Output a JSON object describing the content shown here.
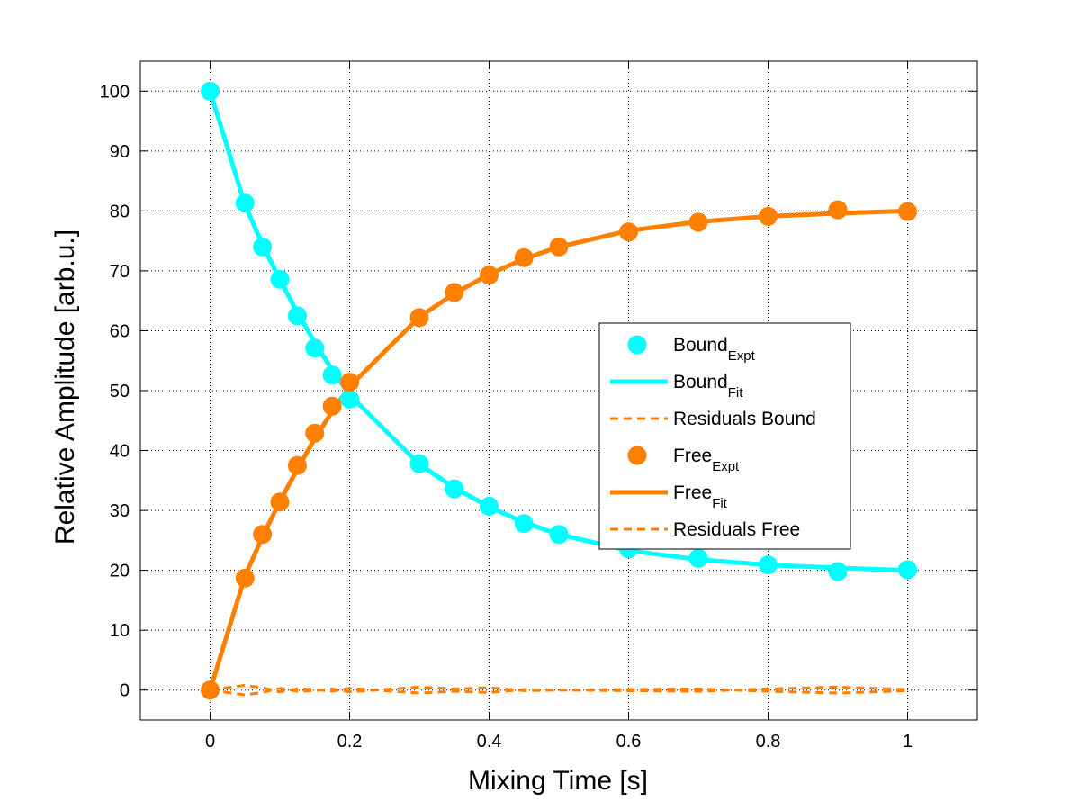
{
  "chart_data": {
    "type": "line",
    "title": "",
    "xlabel": "Mixing Time [s]",
    "ylabel": "Relative Amplitude [arb.u.]",
    "xlim": [
      -0.1,
      1.1
    ],
    "ylim": [
      -5,
      105
    ],
    "xticks": [
      0,
      0.2,
      0.4,
      0.6,
      0.8,
      1
    ],
    "xtick_labels": [
      "0",
      "0.2",
      "0.4",
      "0.6",
      "0.8",
      "1"
    ],
    "yticks": [
      0,
      10,
      20,
      30,
      40,
      50,
      60,
      70,
      80,
      90,
      100
    ],
    "ytick_labels": [
      "0",
      "10",
      "20",
      "30",
      "40",
      "50",
      "60",
      "70",
      "80",
      "90",
      "100"
    ],
    "grid": true,
    "legend_position": "center-right",
    "colors": {
      "bound": "#00ffff",
      "free": "#ff7f00"
    },
    "x": [
      0,
      0.05,
      0.075,
      0.1,
      0.125,
      0.15,
      0.175,
      0.2,
      0.3,
      0.35,
      0.4,
      0.45,
      0.5,
      0.6,
      0.7,
      0.8,
      0.9,
      1.0
    ],
    "series": [
      {
        "key": "bound_expt",
        "name": "Bound",
        "name_sub": "Expt",
        "style": "marker",
        "values": [
          100,
          81.3,
          74.0,
          68.6,
          62.5,
          57.1,
          52.6,
          48.6,
          37.8,
          33.6,
          30.7,
          27.8,
          26.0,
          23.6,
          22.0,
          20.9,
          19.8,
          20.1
        ]
      },
      {
        "key": "bound_fit",
        "name": "Bound",
        "name_sub": "Fit",
        "style": "solid",
        "values": [
          100,
          81.0,
          74.4,
          68.5,
          63.1,
          58.0,
          53.5,
          49.3,
          37.7,
          33.8,
          30.6,
          28.0,
          26.0,
          23.3,
          21.8,
          20.9,
          20.4,
          20.0
        ]
      },
      {
        "key": "residuals_bound",
        "name": "Residuals Bound",
        "name_sub": "",
        "style": "dashed",
        "values": [
          0,
          -0.8,
          -0.4,
          0.3,
          -0.2,
          -0.1,
          0.2,
          -0.3,
          0.5,
          0.2,
          0.4,
          -0.1,
          0.0,
          0.1,
          0.2,
          -0.2,
          -0.5,
          -0.1
        ]
      },
      {
        "key": "free_expt",
        "name": "Free",
        "name_sub": "Expt",
        "style": "marker",
        "values": [
          0,
          18.7,
          26.0,
          31.4,
          37.5,
          42.9,
          47.4,
          51.4,
          62.2,
          66.4,
          69.3,
          72.2,
          74.0,
          76.5,
          78.1,
          79.1,
          80.2,
          79.9
        ]
      },
      {
        "key": "free_fit",
        "name": "Free",
        "name_sub": "Fit",
        "style": "solid",
        "values": [
          0,
          19.0,
          25.6,
          31.5,
          36.9,
          42.0,
          46.5,
          50.7,
          62.3,
          66.2,
          69.4,
          72.0,
          74.0,
          76.7,
          78.2,
          79.1,
          79.6,
          80.0
        ]
      },
      {
        "key": "residuals_free",
        "name": "Residuals Free",
        "name_sub": "",
        "style": "dashed",
        "values": [
          0,
          0.8,
          0.4,
          -0.3,
          0.2,
          0.1,
          -0.2,
          0.3,
          -0.5,
          -0.2,
          -0.4,
          0.1,
          0.0,
          -0.1,
          -0.2,
          0.2,
          0.5,
          0.1
        ]
      }
    ]
  }
}
